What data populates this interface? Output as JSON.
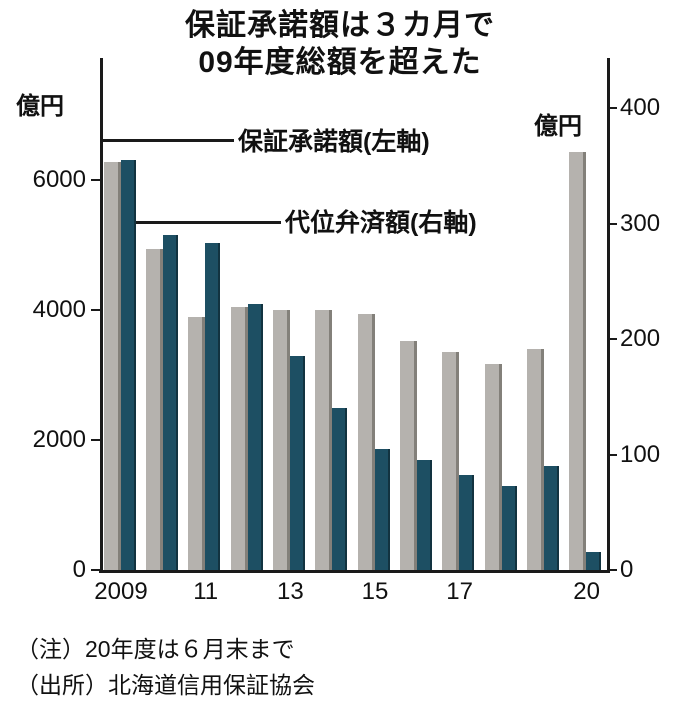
{
  "title": {
    "line1": "保証承諾額は３カ月で",
    "line2": "09年度総額を超えた"
  },
  "chart_data": {
    "type": "bar",
    "x": [
      2009,
      2010,
      2011,
      2012,
      2013,
      2014,
      2015,
      2016,
      2017,
      2018,
      2019,
      2020
    ],
    "x_tick_labels": [
      "2009",
      "11",
      "13",
      "15",
      "17",
      "20"
    ],
    "x_tick_groups": [
      0,
      2,
      4,
      6,
      8,
      11
    ],
    "series": [
      {
        "name": "保証承諾額(左軸)",
        "axis": "left",
        "color": "#b5b2ae",
        "values": [
          6280,
          4950,
          3900,
          4050,
          4000,
          4000,
          3950,
          3520,
          3350,
          3180,
          3400,
          6440
        ]
      },
      {
        "name": "代位弁済額(右軸)",
        "axis": "right",
        "color": "#1d4f63",
        "values": [
          355,
          290,
          283,
          230,
          185,
          140,
          105,
          95,
          82,
          73,
          90,
          16
        ]
      }
    ],
    "left_axis": {
      "unit": "億円",
      "ticks": [
        0,
        2000,
        4000,
        6000
      ],
      "range": [
        0,
        7700
      ]
    },
    "right_axis": {
      "unit": "億円",
      "ticks": [
        0,
        100,
        200,
        300,
        400
      ],
      "range": [
        0,
        433
      ]
    },
    "grid": false,
    "legend_position": "annotations-inside-plot"
  },
  "annotations": {
    "guarantee_label": "保証承諾額(左軸)",
    "subrogation_label": "代位弁済額(右軸)"
  },
  "notes": {
    "note": "（注）20年度は６月末まで",
    "source": "（出所）北海道信用保証協会"
  },
  "colors": {
    "axis": "#1a1a1a",
    "bar_guarantee": "#b5b2ae",
    "bar_subrogation": "#1d4f63"
  }
}
